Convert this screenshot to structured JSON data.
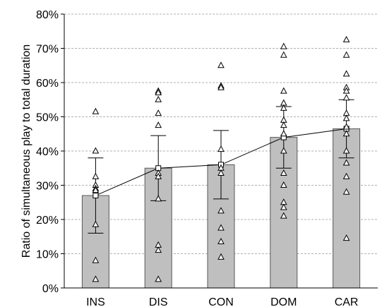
{
  "chart_data": {
    "type": "bar",
    "title": "",
    "xlabel": "",
    "ylabel": "Ratio of simultaneous play to total duration",
    "ylim": [
      0,
      80
    ],
    "yticks": [
      "0%",
      "10%",
      "20%",
      "30%",
      "40%",
      "50%",
      "60%",
      "70%",
      "80%"
    ],
    "ytick_values": [
      0,
      10,
      20,
      30,
      40,
      50,
      60,
      70,
      80
    ],
    "grid": "horizontal dashed",
    "categories": [
      "INS",
      "DIS",
      "CON",
      "DOM",
      "CAR"
    ],
    "series": [
      {
        "kind": "bar",
        "values": [
          27,
          35,
          36,
          44,
          46.5
        ],
        "error": [
          [
            16,
            38
          ],
          [
            25.5,
            44.5
          ],
          [
            26,
            46
          ],
          [
            35,
            53
          ],
          [
            38,
            55
          ]
        ]
      },
      {
        "kind": "line",
        "marker": "square",
        "values": [
          27,
          35,
          36,
          44,
          46.5
        ]
      },
      {
        "kind": "scatter",
        "marker": "triangle",
        "points": [
          [
            51.5,
            40,
            32.5,
            30,
            29,
            28.5,
            18.5,
            8,
            2.5
          ],
          [
            57.5,
            57,
            55,
            51,
            47.5,
            33.5,
            32.5,
            26,
            12.5,
            11,
            2.5
          ],
          [
            65,
            59,
            58.5,
            40.5,
            35,
            33.5,
            22.5,
            17.5,
            13.5,
            9
          ],
          [
            70.5,
            68,
            57.5,
            54,
            52.5,
            49,
            47.5,
            45,
            40,
            33.5,
            30,
            25,
            23.5,
            21
          ],
          [
            72.5,
            68,
            62.5,
            58.5,
            57.5,
            55.5,
            51,
            49.5,
            47,
            45,
            40,
            36.5,
            32.5,
            28,
            14.5
          ]
        ]
      }
    ]
  },
  "colors": {
    "bar_fill": "#bfbfbf",
    "bar_stroke": "#595959",
    "grid": "#b0b0b0",
    "line": "#000000",
    "axis": "#000000"
  }
}
